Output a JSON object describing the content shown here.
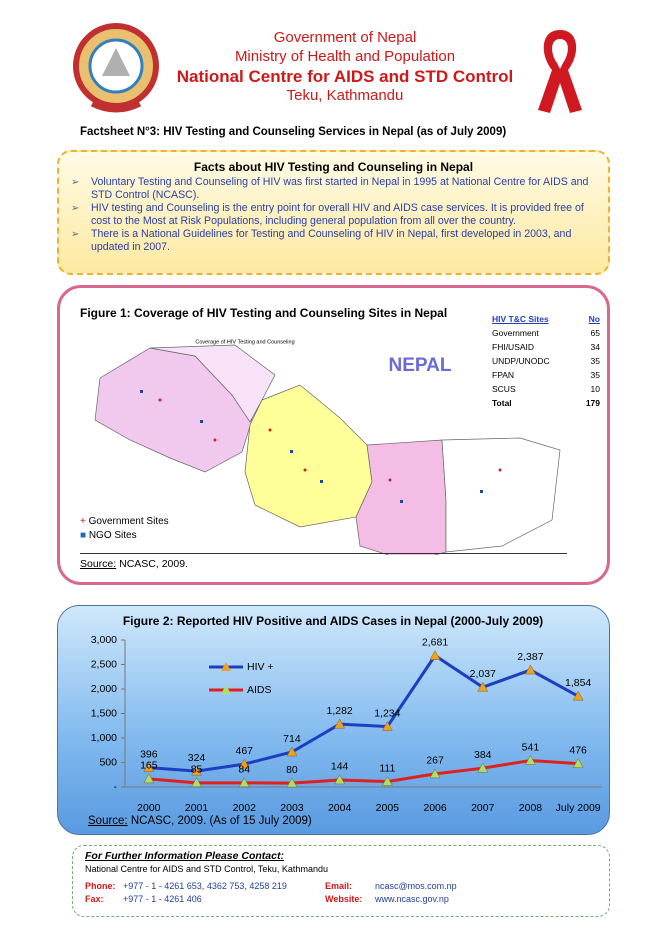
{
  "header": {
    "government": "Government of Nepal",
    "ministry": "Ministry of Health and Population",
    "centre": "National Centre for AIDS and STD Control",
    "location": "Teku, Kathmandu"
  },
  "factsheet_title": "Factsheet N°3: HIV Testing and Counseling Services in Nepal (as of July 2009)",
  "facts": {
    "title": "Facts about HIV Testing and Counseling in Nepal",
    "items": [
      "Voluntary Testing and Counseling of HIV was first started in Nepal in 1995 at National Centre for AIDS and STD Control (NCASC).",
      "HIV testing and Counseling is the entry point for overall HIV and AIDS case services. It is provided free of cost to the Most at Risk Populations, including general population from all over the country.",
      "There is a National Guidelines for Testing and Counseling of HIV in Nepal, first developed in 2003, and updated in 2007."
    ]
  },
  "figure1": {
    "title": "Figure 1: Coverage of HIV Testing and Counseling Sites in Nepal",
    "map_title": "Coverage of HIV Testing and Counseling",
    "map_label": "NEPAL",
    "table": {
      "header": [
        "HIV T&C Sites",
        "No"
      ],
      "rows": [
        [
          "Government",
          65
        ],
        [
          "FHI/USAID",
          34
        ],
        [
          "UNDP/UNODC",
          35
        ],
        [
          "FPAN",
          35
        ],
        [
          "SCUS",
          10
        ],
        [
          "Total",
          179
        ]
      ]
    },
    "legend": [
      "Government Sites",
      "NGO Sites"
    ],
    "source_label": "Source:",
    "source": "NCASC, 2009."
  },
  "chart_data": {
    "type": "line",
    "title": "Figure 2: Reported HIV Positive and AIDS Cases in Nepal (2000-July 2009)",
    "categories": [
      "2000",
      "2001",
      "2002",
      "2003",
      "2004",
      "2005",
      "2006",
      "2007",
      "2008",
      "July 2009"
    ],
    "series": [
      {
        "name": "HIV +",
        "color": "#1c3fbf",
        "marker_color": "#f0a020",
        "values": [
          396,
          324,
          467,
          714,
          1282,
          1234,
          2681,
          2037,
          2387,
          1854
        ],
        "value_labels": [
          "396",
          "324",
          "467",
          "714",
          "1,282",
          "1,234",
          "2,681",
          "2,037",
          "2,387",
          "1,854"
        ]
      },
      {
        "name": "AIDS",
        "color": "#e0201c",
        "marker_color": "#a8e070",
        "values": [
          165,
          85,
          84,
          80,
          144,
          111,
          267,
          384,
          541,
          476
        ]
      }
    ],
    "ylim": [
      0,
      3000
    ],
    "yticks": [
      {
        "value": 0,
        "label": "-"
      },
      500,
      {
        "value": 1000,
        "label": "1,000"
      },
      {
        "value": 1500,
        "label": "1,500"
      },
      {
        "value": 2000,
        "label": "2,000"
      },
      {
        "value": 2500,
        "label": "2,500"
      },
      {
        "value": 3000,
        "label": "3,000"
      }
    ],
    "source_label": "Source:",
    "source": "NCASC, 2009. (As of 15 July 2009)"
  },
  "contact": {
    "heading": "For Further Information Please Contact:",
    "address": "National Centre for AIDS and STD Control, Teku, Kathmandu",
    "phone_label": "Phone:",
    "phone": "+977 - 1 - 4261 653, 4362 753, 4258 219",
    "fax_label": "Fax:",
    "fax": "+977 - 1 - 4261 406",
    "email_label": "Email:",
    "email": "ncasc@mos.com.np",
    "website_label": "Website:",
    "website": "www.ncasc.gov.np"
  }
}
